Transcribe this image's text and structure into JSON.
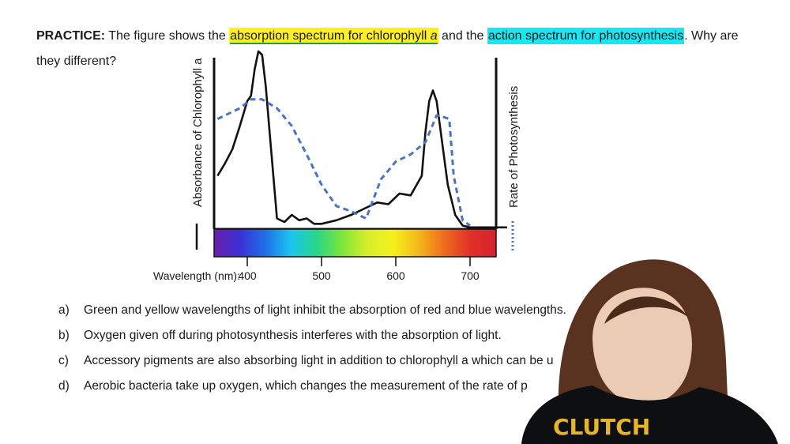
{
  "question": {
    "prefix": "PRACTICE:",
    "t1": " The figure shows the ",
    "hl1": "absorption spectrum for chlorophyll ",
    "hl1_italic": "a",
    "t2": " and the ",
    "hl2": "action spectrum for photosynthesis",
    "t3": ". Why are they different?",
    "highlight_colors": {
      "absorption": "#ffef1f",
      "action": "#18e6f0",
      "underline": "#23a030"
    }
  },
  "chart_data": {
    "type": "line",
    "xlabel": "Wavelength (nm):",
    "left_ylabel": "Absorbance of Chlorophyll a",
    "right_ylabel": "Rate of Photosynthesis",
    "x_ticks": [
      "400",
      "500",
      "600",
      "700"
    ],
    "xlim": [
      360,
      750
    ],
    "ylim": [
      0,
      1
    ],
    "series": [
      {
        "name": "Absorbance of Chlorophyll a",
        "style": "solid",
        "color": "#111111",
        "x": [
          360,
          370,
          380,
          390,
          400,
          405,
          410,
          415,
          420,
          425,
          430,
          440,
          450,
          460,
          470,
          480,
          490,
          500,
          520,
          540,
          560,
          575,
          590,
          605,
          620,
          635,
          640,
          645,
          650,
          655,
          662,
          670,
          680,
          690,
          700,
          720,
          750
        ],
        "values": [
          0.3,
          0.37,
          0.45,
          0.58,
          0.72,
          0.75,
          0.9,
          1.0,
          0.98,
          0.8,
          0.55,
          0.06,
          0.04,
          0.08,
          0.05,
          0.06,
          0.03,
          0.03,
          0.05,
          0.08,
          0.12,
          0.15,
          0.14,
          0.2,
          0.19,
          0.3,
          0.55,
          0.72,
          0.78,
          0.72,
          0.5,
          0.25,
          0.08,
          0.02,
          0.01,
          0.01,
          0.01
        ]
      },
      {
        "name": "Rate of Photosynthesis",
        "style": "dashed",
        "color": "#4b72c5",
        "x": [
          360,
          390,
          405,
          420,
          440,
          460,
          480,
          500,
          520,
          540,
          560,
          580,
          600,
          620,
          640,
          655,
          665,
          672,
          678,
          690,
          700
        ],
        "values": [
          0.62,
          0.68,
          0.73,
          0.73,
          0.68,
          0.58,
          0.42,
          0.25,
          0.13,
          0.1,
          0.06,
          0.28,
          0.38,
          0.42,
          0.49,
          0.64,
          0.63,
          0.62,
          0.3,
          0.05,
          0.02
        ]
      }
    ],
    "grid": false,
    "spectrum_bar": {
      "colors": [
        "#6a1fa8",
        "#3c2fd6",
        "#1f6fe8",
        "#1cc6f0",
        "#27d68a",
        "#7ee63a",
        "#d9ee2a",
        "#f5f01c",
        "#f4b51a",
        "#ee6a1c",
        "#e0302a",
        "#d4232e"
      ]
    }
  },
  "options": [
    {
      "letter": "a)",
      "text": "Green and yellow wavelengths of light inhibit the absorption of red and blue wavelengths."
    },
    {
      "letter": "b)",
      "text": "Oxygen given off during photosynthesis interferes with the absorption of light."
    },
    {
      "letter": "c)",
      "text": "Accessory pigments are also absorbing light in addition to chlorophyll a which can be u"
    },
    {
      "letter": "d)",
      "text": "Aerobic bacteria take up oxygen, which changes the measurement of the rate of p"
    }
  ],
  "shirt_logo": "CLUTCH"
}
